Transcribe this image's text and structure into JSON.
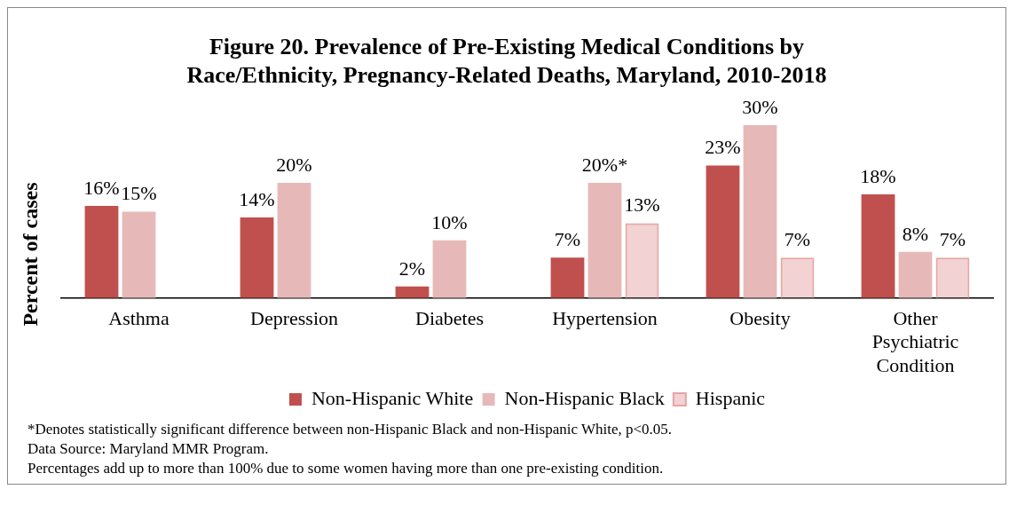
{
  "chart_data": {
    "type": "bar",
    "title": "Figure 20. Prevalence of Pre-Existing Medical Conditions by Race/Ethnicity, Pregnancy-Related Deaths, Maryland, 2010-2018",
    "ylabel": "Percent of cases",
    "categories": [
      "Asthma",
      "Depression",
      "Diabetes",
      "Hypertension",
      "Obesity",
      "Other Psychiatric Condition"
    ],
    "series": [
      {
        "name": "Non-Hispanic White",
        "color": "#c0504d",
        "values": [
          16,
          14,
          2,
          7,
          23,
          18
        ],
        "value_labels": [
          "16%",
          "14%",
          "2%",
          "7%",
          "23%",
          "18%"
        ]
      },
      {
        "name": "Non-Hispanic Black",
        "color": "#e6b9b8",
        "values": [
          15,
          20,
          10,
          20,
          30,
          8
        ],
        "value_labels": [
          "15%",
          "20%",
          "10%",
          "20%*",
          "30%",
          "8%"
        ]
      },
      {
        "name": "Hispanic",
        "color": "#e6a5a5",
        "values": [
          null,
          null,
          null,
          13,
          7,
          7
        ],
        "value_labels": [
          null,
          null,
          null,
          "13%",
          "7%",
          "7%"
        ]
      }
    ],
    "legend": "bottom",
    "grid": false,
    "annotations": [
      "*Denotes statistically significant difference between non-Hispanic Black and non-Hispanic White, p<0.05.",
      "Data Source: Maryland MMR Program.",
      "Percentages add up to more than 100% due to some women having more than one pre-existing condition."
    ]
  }
}
